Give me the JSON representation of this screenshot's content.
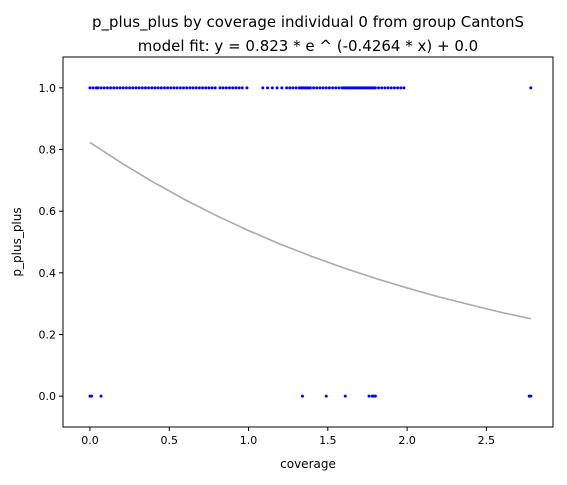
{
  "chart_data": {
    "type": "scatter",
    "title": "p_plus_plus by coverage individual 0 from group CantonS",
    "subtitle": "model fit: y = 0.823 * e ^ (-0.4264 * x) + 0.0",
    "xlabel": "coverage",
    "ylabel": "p_plus_plus",
    "xlim": [
      -0.17,
      2.92
    ],
    "ylim": [
      -0.1,
      1.1
    ],
    "x_ticks": [
      "0.0",
      "0.5",
      "1.0",
      "1.5",
      "2.0",
      "2.5"
    ],
    "y_ticks": [
      "0.0",
      "0.2",
      "0.4",
      "0.6",
      "0.8",
      "1.0"
    ],
    "grid": false,
    "colors": {
      "points": "#0000ff",
      "fit": "#aaaaaa"
    },
    "series": [
      {
        "type": "scatter",
        "x": [
          0.0,
          0.02,
          0.04,
          0.05,
          0.07,
          0.09,
          0.11,
          0.13,
          0.15,
          0.17,
          0.19,
          0.21,
          0.23,
          0.25,
          0.27,
          0.29,
          0.31,
          0.33,
          0.35,
          0.37,
          0.39,
          0.41,
          0.43,
          0.45,
          0.47,
          0.49,
          0.51,
          0.53,
          0.55,
          0.57,
          0.59,
          0.61,
          0.63,
          0.65,
          0.67,
          0.69,
          0.71,
          0.73,
          0.75,
          0.77,
          0.79,
          0.82,
          0.84,
          0.86,
          0.88,
          0.9,
          0.92,
          0.94,
          0.96,
          0.99,
          1.09,
          1.12,
          1.15,
          1.18,
          1.21,
          1.24,
          1.26,
          1.28,
          1.3,
          1.32,
          1.33,
          1.34,
          1.35,
          1.36,
          1.37,
          1.38,
          1.39,
          1.41,
          1.43,
          1.45,
          1.47,
          1.49,
          1.51,
          1.53,
          1.55,
          1.57,
          1.59,
          1.6,
          1.61,
          1.62,
          1.63,
          1.64,
          1.65,
          1.66,
          1.67,
          1.68,
          1.69,
          1.7,
          1.71,
          1.72,
          1.73,
          1.74,
          1.75,
          1.76,
          1.77,
          1.78,
          1.79,
          1.8,
          1.82,
          1.84,
          1.86,
          1.88,
          1.9,
          1.92,
          1.94,
          1.96,
          1.98,
          2.78,
          0.0,
          0.01,
          0.07,
          1.34,
          1.49,
          1.61,
          1.76,
          1.78,
          1.79,
          1.8,
          2.77,
          2.78
        ],
        "y": [
          1,
          1,
          1,
          1,
          1,
          1,
          1,
          1,
          1,
          1,
          1,
          1,
          1,
          1,
          1,
          1,
          1,
          1,
          1,
          1,
          1,
          1,
          1,
          1,
          1,
          1,
          1,
          1,
          1,
          1,
          1,
          1,
          1,
          1,
          1,
          1,
          1,
          1,
          1,
          1,
          1,
          1,
          1,
          1,
          1,
          1,
          1,
          1,
          1,
          1,
          1,
          1,
          1,
          1,
          1,
          1,
          1,
          1,
          1,
          1,
          1,
          1,
          1,
          1,
          1,
          1,
          1,
          1,
          1,
          1,
          1,
          1,
          1,
          1,
          1,
          1,
          1,
          1,
          1,
          1,
          1,
          1,
          1,
          1,
          1,
          1,
          1,
          1,
          1,
          1,
          1,
          1,
          1,
          1,
          1,
          1,
          1,
          1,
          1,
          1,
          1,
          1,
          1,
          1,
          1,
          1,
          1,
          1,
          0,
          0,
          0,
          0,
          0,
          0,
          0,
          0,
          0,
          0,
          0,
          0
        ]
      },
      {
        "type": "line",
        "x": [
          0.0,
          0.2,
          0.4,
          0.6,
          0.8,
          1.0,
          1.2,
          1.4,
          1.6,
          1.8,
          2.0,
          2.2,
          2.4,
          2.6,
          2.78
        ],
        "y": [
          0.823,
          0.756,
          0.694,
          0.637,
          0.585,
          0.537,
          0.493,
          0.453,
          0.416,
          0.382,
          0.351,
          0.322,
          0.296,
          0.271,
          0.251
        ]
      }
    ]
  }
}
